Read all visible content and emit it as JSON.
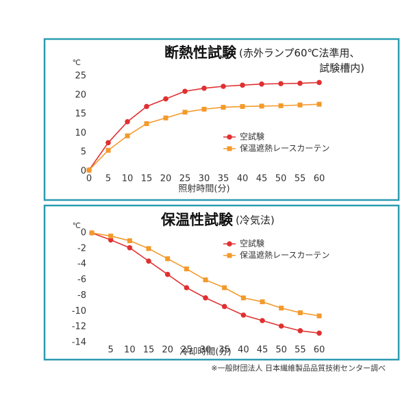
{
  "chart_data": [
    {
      "type": "line",
      "title": "断熱性試験",
      "subtitle_lines": [
        "(赤外ランプ60℃法準用、",
        "試験槽内)"
      ],
      "y_unit": "℃",
      "x_label": "照射時間(分)",
      "x": [
        0,
        5,
        10,
        15,
        20,
        25,
        30,
        35,
        40,
        45,
        50,
        55,
        60
      ],
      "xlim": [
        0,
        60
      ],
      "xticks": [
        0,
        5,
        10,
        15,
        20,
        25,
        30,
        35,
        40,
        45,
        50,
        55,
        60
      ],
      "ylim": [
        0,
        27
      ],
      "yticks": [
        0,
        5,
        10,
        15,
        20,
        25
      ],
      "legend": "right",
      "series": [
        {
          "name": "空試験",
          "color": "#e03030",
          "marker": "circle",
          "values": [
            0.3,
            7.5,
            13,
            17,
            19,
            21,
            21.8,
            22.3,
            22.6,
            22.9,
            23,
            23.1,
            23.3
          ]
        },
        {
          "name": "保温遮熱レースカーテン",
          "color": "#f39a2b",
          "marker": "square",
          "values": [
            0.3,
            5.5,
            9.3,
            12.5,
            14,
            15.5,
            16.3,
            16.8,
            17,
            17.1,
            17.2,
            17.4,
            17.6
          ]
        }
      ]
    },
    {
      "type": "line",
      "title": "保温性試験",
      "subtitle_lines": [
        "(冷気法)"
      ],
      "y_unit": "℃",
      "x_label": "冷却時間(分)",
      "x": [
        0,
        5,
        10,
        15,
        20,
        25,
        30,
        35,
        40,
        45,
        50,
        55,
        60
      ],
      "xlim": [
        0,
        60
      ],
      "xticks": [
        5,
        10,
        15,
        20,
        25,
        30,
        35,
        40,
        45,
        50,
        55,
        60
      ],
      "ylim": [
        -14,
        0
      ],
      "yticks": [
        0,
        -2,
        -4,
        -6,
        -8,
        -10,
        -12,
        -14
      ],
      "legend": "right",
      "series": [
        {
          "name": "空試験",
          "color": "#e03030",
          "marker": "circle",
          "values": [
            0,
            -0.9,
            -1.9,
            -3.6,
            -5.3,
            -7,
            -8.3,
            -9.4,
            -10.5,
            -11.2,
            -11.9,
            -12.5,
            -12.8
          ]
        },
        {
          "name": "保温遮熱レースカーテン",
          "color": "#f39a2b",
          "marker": "square",
          "values": [
            0,
            -0.4,
            -1,
            -2,
            -3.3,
            -4.6,
            -6,
            -7,
            -8.3,
            -8.8,
            -9.6,
            -10.2,
            -10.6
          ]
        }
      ]
    }
  ],
  "footnote": "※一般財団法人 日本繊維製品品質技術センター調べ"
}
